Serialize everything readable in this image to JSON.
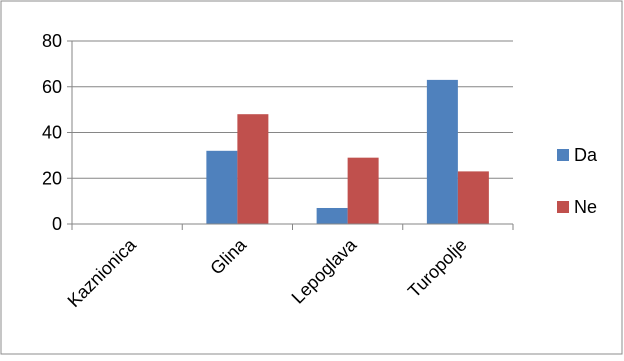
{
  "chart_data": {
    "type": "bar",
    "title": "",
    "xlabel": "",
    "ylabel": "",
    "categories": [
      "Kaznionica",
      "Glina",
      "Lepoglava",
      "Turopolje"
    ],
    "series": [
      {
        "name": "Da",
        "color": "#4F81BD",
        "values": [
          0,
          32,
          7,
          63
        ]
      },
      {
        "name": "Ne",
        "color": "#C0504D",
        "values": [
          0,
          48,
          29,
          23
        ]
      }
    ],
    "ylim": [
      0,
      80
    ],
    "yticks": [
      "0",
      "20",
      "40",
      "60",
      "80"
    ],
    "grid": true,
    "legend_position": "right"
  }
}
